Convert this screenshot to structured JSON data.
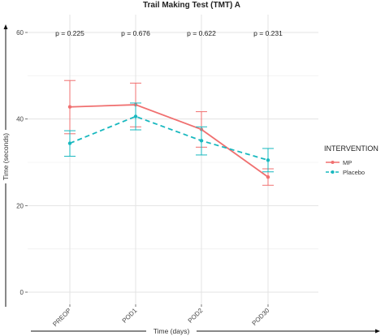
{
  "chart_data": {
    "type": "line",
    "title": "Trail Making Test (TMT) A",
    "xlabel": "Time (days)",
    "ylabel": "Time (seconds)",
    "categories": [
      "PREOP",
      "POD1",
      "POD2",
      "POD30"
    ],
    "ylim": [
      0,
      60
    ],
    "yticks": [
      0,
      20,
      40,
      60
    ],
    "grid": true,
    "p_values": [
      "p = 0.225",
      "p = 0.676",
      "p = 0.622",
      "p = 0.231"
    ],
    "legend": {
      "title": "INTERVENTION",
      "position": "right"
    },
    "series": [
      {
        "name": "MP",
        "color": "#f07070",
        "dash": "solid",
        "values": [
          42.8,
          43.3,
          37.6,
          26.6
        ],
        "lower": [
          36.6,
          38.2,
          33.5,
          24.7
        ],
        "upper": [
          48.9,
          48.3,
          41.7,
          28.5
        ]
      },
      {
        "name": "Placebo",
        "color": "#18b8bf",
        "dash": "dashed",
        "values": [
          34.4,
          40.6,
          35.0,
          30.5
        ],
        "lower": [
          31.4,
          37.5,
          31.7,
          27.8
        ],
        "upper": [
          37.3,
          43.7,
          38.2,
          33.2
        ]
      }
    ]
  }
}
